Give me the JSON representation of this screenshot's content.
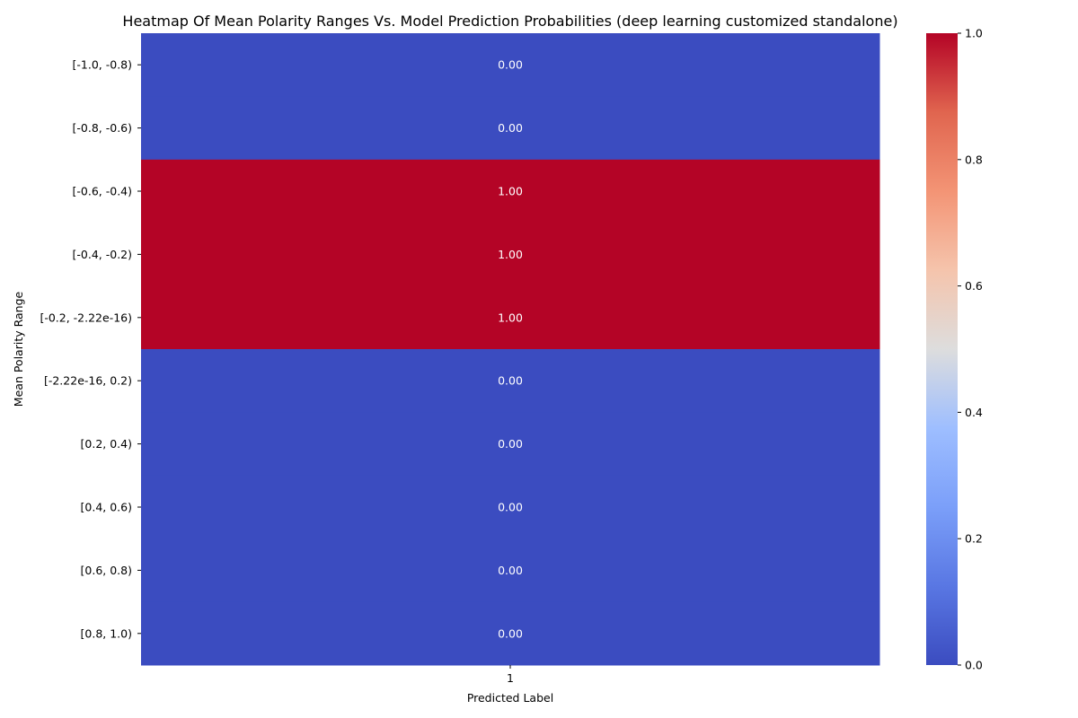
{
  "chart_data": {
    "type": "heatmap",
    "title": "Heatmap Of Mean Polarity Ranges Vs. Model Prediction Probabilities (deep learning customized standalone)",
    "xlabel": "Predicted Label",
    "ylabel": "Mean Polarity Range",
    "x_categories": [
      "1"
    ],
    "y_categories": [
      "[-1.0, -0.8)",
      "[-0.8, -0.6)",
      "[-0.6, -0.4)",
      "[-0.4, -0.2)",
      "[-0.2, -2.22e-16)",
      "[-2.22e-16, 0.2)",
      "[0.2, 0.4)",
      "[0.4, 0.6)",
      "[0.6, 0.8)",
      "[0.8, 1.0)"
    ],
    "values": [
      [
        0.0
      ],
      [
        0.0
      ],
      [
        1.0
      ],
      [
        1.0
      ],
      [
        1.0
      ],
      [
        0.0
      ],
      [
        0.0
      ],
      [
        0.0
      ],
      [
        0.0
      ],
      [
        0.0
      ]
    ],
    "cell_labels": [
      "0.00",
      "0.00",
      "1.00",
      "1.00",
      "1.00",
      "0.00",
      "0.00",
      "0.00",
      "0.00",
      "0.00"
    ],
    "colormap": "coolwarm",
    "color_low": "#3b4cc0",
    "color_mid": "#dddddd",
    "color_high": "#b40426",
    "cell_label_color": "#ffffff",
    "colorbar": {
      "range": [
        0.0,
        1.0
      ],
      "ticks": [
        "0.0",
        "0.2",
        "0.4",
        "0.6",
        "0.8",
        "1.0"
      ]
    }
  }
}
